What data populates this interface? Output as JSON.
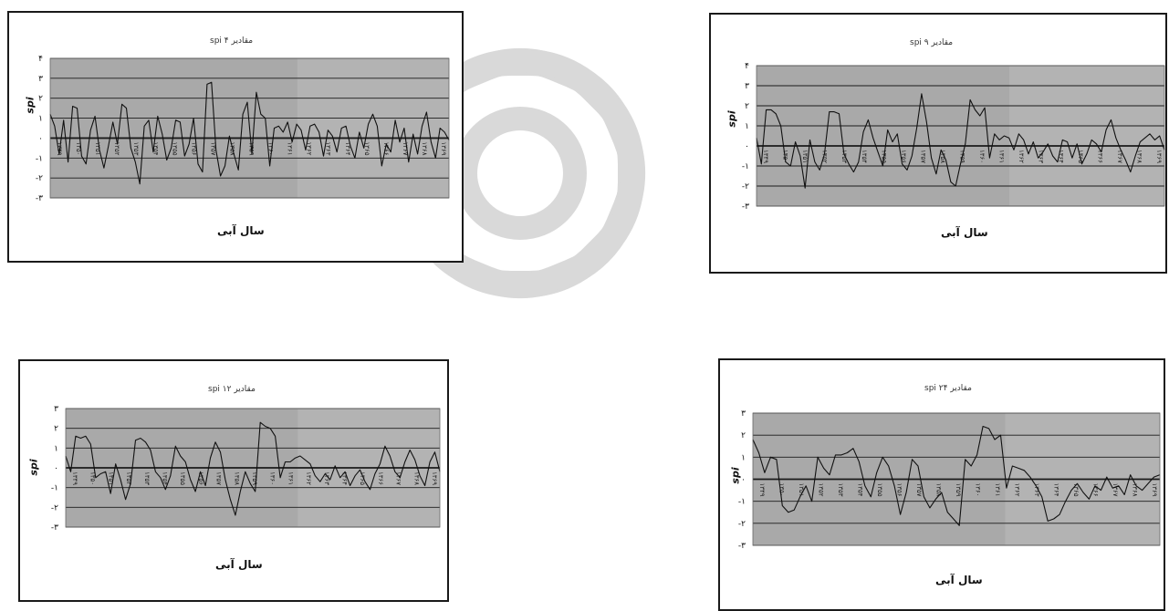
{
  "chart_data": [
    {
      "type": "line",
      "title": "مقادیر ۴ spi",
      "xlabel": "سال آبی",
      "ylabel": "spi",
      "ylim": [
        -3,
        4
      ],
      "yticks": [
        "-۳",
        "-۲",
        "-۱",
        "۰",
        "۱",
        "۲",
        "۳",
        "۴"
      ],
      "xticks": [
        "۱۳۴۹",
        "۱۳۵۰",
        "۱۳۵۱",
        "۱۳۵۲",
        "۱۳۵۳",
        "۱۳۵۴",
        "۱۳۵۵",
        "۱۳۵۶",
        "۱۳۵۷",
        "۱۳۵۸",
        "۱۳۵۹",
        "۱۳۶۰",
        "۱۳۶۱",
        "۱۳۶۲",
        "۱۳۶۳",
        "۱۳۶۴",
        "۱۳۶۵",
        "۱۳۶۶",
        "۱۳۶۷",
        "۱۳۶۸",
        "۱۳۶۹"
      ],
      "series": [
        {
          "values": [
            1.2,
            0.6,
            -0.8,
            0.9,
            -1.2,
            1.6,
            1.5,
            -0.9,
            -1.3,
            0.4,
            1.1,
            -0.6,
            -1.5,
            -0.4,
            0.8,
            -0.3,
            1.7,
            1.5,
            -0.5,
            -1.2,
            -2.3,
            0.6,
            0.9,
            -0.7,
            1.1,
            0.2,
            -1.1,
            -0.5,
            0.9,
            0.8,
            -0.9,
            -0.3,
            1.0,
            -1.3,
            -1.7,
            2.7,
            2.8,
            -0.6,
            -1.9,
            -1.4,
            0.1,
            -0.8,
            -1.6,
            1.2,
            1.8,
            -0.8,
            2.3,
            1.2,
            1.0,
            -1.4,
            0.5,
            0.6,
            0.3,
            0.8,
            -0.2,
            0.7,
            0.4,
            -0.6,
            0.6,
            0.7,
            0.3,
            -0.9,
            0.4,
            0.1,
            -0.7,
            0.5,
            0.6,
            -0.4,
            -1.0,
            0.3,
            -0.5,
            0.7,
            1.2,
            0.6,
            -1.4,
            -0.3,
            -0.7,
            0.9,
            -0.2,
            0.5,
            -1.2,
            0.2,
            -0.8,
            0.6,
            1.3,
            -0.2,
            -1.0,
            0.5,
            0.3,
            -0.1
          ]
        }
      ]
    },
    {
      "type": "line",
      "title": "مقادیر ۹ spi",
      "xlabel": "سال آبی",
      "ylabel": "spi",
      "ylim": [
        -3,
        4
      ],
      "yticks": [
        "-۳",
        "-۲",
        "-۱",
        "۰",
        "۱",
        "۲",
        "۳",
        "۴"
      ],
      "xticks": [
        "۱۳۴۹",
        "۱۳۵۰",
        "۱۳۵۱",
        "۱۳۵۲",
        "۱۳۵۳",
        "۱۳۵۴",
        "۱۳۵۵",
        "۱۳۵۶",
        "۱۳۵۷",
        "۱۳۵۸",
        "۱۳۵۹",
        "۱۳۶۰",
        "۱۳۶۱",
        "۱۳۶۲",
        "۱۳۶۳",
        "۱۳۶۴",
        "۱۳۶۵",
        "۱۳۶۶",
        "۱۳۶۷",
        "۱۳۶۸",
        "۱۳۶۹"
      ],
      "series": [
        {
          "values": [
            0.4,
            -0.9,
            1.8,
            1.8,
            1.6,
            1.0,
            -0.8,
            -1.0,
            0.2,
            -0.5,
            -2.1,
            0.3,
            -0.8,
            -1.2,
            -0.4,
            1.7,
            1.7,
            1.6,
            -0.4,
            -0.9,
            -1.3,
            -0.8,
            0.7,
            1.3,
            0.4,
            -0.3,
            -1.0,
            0.8,
            0.2,
            0.6,
            -0.9,
            -1.2,
            -0.5,
            0.9,
            2.6,
            1.2,
            -0.6,
            -1.4,
            -0.2,
            -0.7,
            -1.8,
            -2.0,
            -0.9,
            0.1,
            2.3,
            1.8,
            1.5,
            1.9,
            -0.6,
            0.6,
            0.3,
            0.5,
            0.4,
            -0.2,
            0.6,
            0.3,
            -0.4,
            0.2,
            -0.6,
            -0.3,
            0.1,
            -0.5,
            -0.8,
            0.3,
            0.2,
            -0.6,
            0.1,
            -0.9,
            -0.4,
            0.3,
            0.1,
            -0.3,
            0.8,
            1.3,
            0.4,
            -0.2,
            -0.7,
            -1.3,
            -0.5,
            0.2,
            0.4,
            0.6,
            0.3,
            0.5,
            -0.2
          ]
        }
      ]
    },
    {
      "type": "line",
      "title": "مقادیر ۱۲ spi",
      "xlabel": "سال آبی",
      "ylabel": "spi",
      "ylim": [
        -3,
        3
      ],
      "yticks": [
        "-۳",
        "-۲",
        "-۱",
        "۰",
        "۱",
        "۲",
        "۳"
      ],
      "xticks": [
        "۱۳۴۹",
        "۱۳۵۰",
        "۱۳۵۱",
        "۱۳۵۲",
        "۱۳۵۳",
        "۱۳۵۴",
        "۱۳۵۵",
        "۱۳۵۶",
        "۱۳۵۷",
        "۱۳۵۸",
        "۱۳۵۹",
        "۱۳۶۰",
        "۱۳۶۱",
        "۱۳۶۲",
        "۱۳۶۳",
        "۱۳۶۴",
        "۱۳۶۵",
        "۱۳۶۶",
        "۱۳۶۷",
        "۱۳۶۸",
        "۱۳۶۹"
      ],
      "series": [
        {
          "values": [
            0.6,
            -0.2,
            1.6,
            1.5,
            1.6,
            1.2,
            -0.5,
            -0.3,
            -0.2,
            -1.3,
            0.2,
            -0.6,
            -1.6,
            -0.8,
            1.4,
            1.5,
            1.3,
            0.9,
            -0.2,
            -0.5,
            -1.1,
            -0.4,
            1.1,
            0.6,
            0.3,
            -0.6,
            -1.2,
            -0.2,
            -0.9,
            0.5,
            1.3,
            0.8,
            -0.6,
            -1.6,
            -2.4,
            -1.2,
            -0.2,
            -0.8,
            -1.2,
            2.3,
            2.1,
            2.0,
            1.6,
            -0.5,
            0.3,
            0.3,
            0.5,
            0.6,
            0.4,
            0.2,
            -0.4,
            -0.7,
            -0.3,
            -0.6,
            0.1,
            -0.5,
            -0.2,
            -0.9,
            -0.4,
            -0.1,
            -0.7,
            -1.1,
            -0.3,
            0.2,
            1.1,
            0.6,
            -0.2,
            -0.5,
            0.3,
            0.9,
            0.4,
            -0.4,
            -0.9,
            0.3,
            0.8,
            -0.2
          ]
        }
      ]
    },
    {
      "type": "line",
      "title": "مقادیر ۲۴ spi",
      "xlabel": "سال آبی",
      "ylabel": "spi",
      "ylim": [
        -3,
        3
      ],
      "yticks": [
        "-۳",
        "-۲",
        "-۱",
        "۰",
        "۱",
        "۲",
        "۳"
      ],
      "xticks": [
        "۱۳۴۹",
        "۱۳۵۰",
        "۱۳۵۱",
        "۱۳۵۲",
        "۱۳۵۳",
        "۱۳۵۴",
        "۱۳۵۵",
        "۱۳۵۶",
        "۱۳۵۷",
        "۱۳۵۸",
        "۱۳۵۹",
        "۱۳۶۰",
        "۱۳۶۱",
        "۱۳۶۲",
        "۱۳۶۳",
        "۱۳۶۴",
        "۱۳۶۵",
        "۱۳۶۶",
        "۱۳۶۷",
        "۱۳۶۸",
        "۱۳۶۹"
      ],
      "series": [
        {
          "values": [
            1.8,
            1.2,
            0.3,
            1.0,
            0.9,
            -1.2,
            -1.5,
            -1.4,
            -0.8,
            -0.3,
            -1.0,
            1.0,
            0.5,
            0.2,
            1.1,
            1.1,
            1.2,
            1.4,
            0.8,
            -0.3,
            -0.8,
            0.3,
            1.0,
            0.6,
            -0.3,
            -1.6,
            -0.6,
            0.9,
            0.6,
            -0.8,
            -1.3,
            -0.9,
            -0.6,
            -1.5,
            -1.8,
            -2.1,
            0.9,
            0.6,
            1.1,
            2.4,
            2.3,
            1.8,
            2.0,
            -0.4,
            0.6,
            0.5,
            0.4,
            0.1,
            -0.3,
            -0.8,
            -1.9,
            -1.8,
            -1.6,
            -1.0,
            -0.5,
            -0.2,
            -0.6,
            -0.9,
            -0.3,
            -0.5,
            0.1,
            -0.4,
            -0.3,
            -0.7,
            0.2,
            -0.3,
            -0.5,
            -0.2,
            0.1,
            0.2
          ]
        }
      ]
    }
  ]
}
